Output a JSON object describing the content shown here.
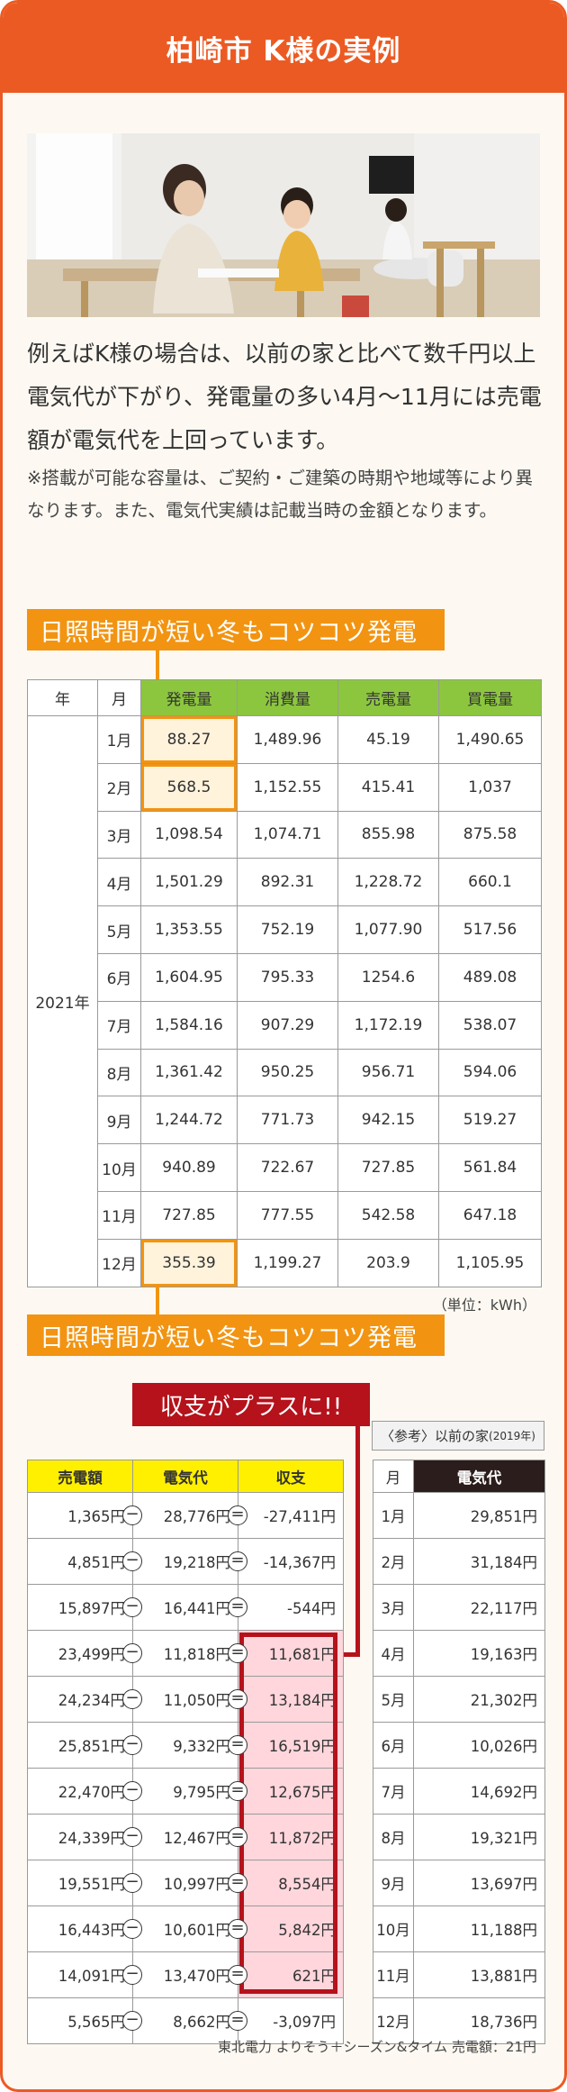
{
  "header": {
    "title": "柏崎市 K様の実例"
  },
  "intro": {
    "lead": "例えばK様の場合は、以前の家と比べて数千円以上電気代が下がり、発電量の多い4月〜11月には売電額が電気代を上回っています。",
    "note": "※搭載が可能な容量は、ご契約・ご建築の時期や地域等により異なります。また、電気代実績は記載当時の金額となります。"
  },
  "banner_text": "日照時間が短い冬もコツコツ発電",
  "generation_table": {
    "headers": [
      "年",
      "月",
      "発電量",
      "消費量",
      "売電量",
      "買電量"
    ],
    "year": "2021年",
    "rows": [
      [
        "1月",
        "88.27",
        "1,489.96",
        "45.19",
        "1,490.65"
      ],
      [
        "2月",
        "568.5",
        "1,152.55",
        "415.41",
        "1,037"
      ],
      [
        "3月",
        "1,098.54",
        "1,074.71",
        "855.98",
        "875.58"
      ],
      [
        "4月",
        "1,501.29",
        "892.31",
        "1,228.72",
        "660.1"
      ],
      [
        "5月",
        "1,353.55",
        "752.19",
        "1,077.90",
        "517.56"
      ],
      [
        "6月",
        "1,604.95",
        "795.33",
        "1254.6",
        "489.08"
      ],
      [
        "7月",
        "1,584.16",
        "907.29",
        "1,172.19",
        "538.07"
      ],
      [
        "8月",
        "1,361.42",
        "950.25",
        "956.71",
        "594.06"
      ],
      [
        "9月",
        "1,244.72",
        "771.73",
        "942.15",
        "519.27"
      ],
      [
        "10月",
        "940.89",
        "722.67",
        "727.85",
        "561.84"
      ],
      [
        "11月",
        "727.85",
        "777.55",
        "542.58",
        "647.18"
      ],
      [
        "12月",
        "355.39",
        "1,199.27",
        "203.9",
        "1,105.95"
      ]
    ],
    "unit": "（単位：kWh）"
  },
  "plus_label": "収支がプラスに!!",
  "balance_table": {
    "headers": [
      "売電額",
      "電気代",
      "収支"
    ],
    "minus_symbol": "−",
    "equals_symbol": "=",
    "rows": [
      [
        "1,365円",
        "28,776円",
        "-27,411円"
      ],
      [
        "4,851円",
        "19,218円",
        "-14,367円"
      ],
      [
        "15,897円",
        "16,441円",
        "-544円"
      ],
      [
        "23,499円",
        "11,818円",
        "11,681円"
      ],
      [
        "24,234円",
        "11,050円",
        "13,184円"
      ],
      [
        "25,851円",
        "9,332円",
        "16,519円"
      ],
      [
        "22,470円",
        "9,795円",
        "12,675円"
      ],
      [
        "24,339円",
        "12,467円",
        "11,872円"
      ],
      [
        "19,551円",
        "10,997円",
        "8,554円"
      ],
      [
        "16,443円",
        "10,601円",
        "5,842円"
      ],
      [
        "14,091円",
        "13,470円",
        "621円"
      ],
      [
        "5,565円",
        "8,662円",
        "-3,097円"
      ]
    ]
  },
  "previous_table": {
    "caption": "〈参考〉以前の家",
    "caption_year": "(2019年)",
    "headers": [
      "月",
      "電気代"
    ],
    "rows": [
      [
        "1月",
        "29,851円"
      ],
      [
        "2月",
        "31,184円"
      ],
      [
        "3月",
        "22,117円"
      ],
      [
        "4月",
        "19,163円"
      ],
      [
        "5月",
        "21,302円"
      ],
      [
        "6月",
        "10,026円"
      ],
      [
        "7月",
        "14,692円"
      ],
      [
        "8月",
        "19,321円"
      ],
      [
        "9月",
        "13,697円"
      ],
      [
        "10月",
        "11,188円"
      ],
      [
        "11月",
        "13,881円"
      ],
      [
        "12月",
        "18,736円"
      ]
    ]
  },
  "footnote": "東北電力 よりそう＋シーズン&タイム 売電額：21円"
}
